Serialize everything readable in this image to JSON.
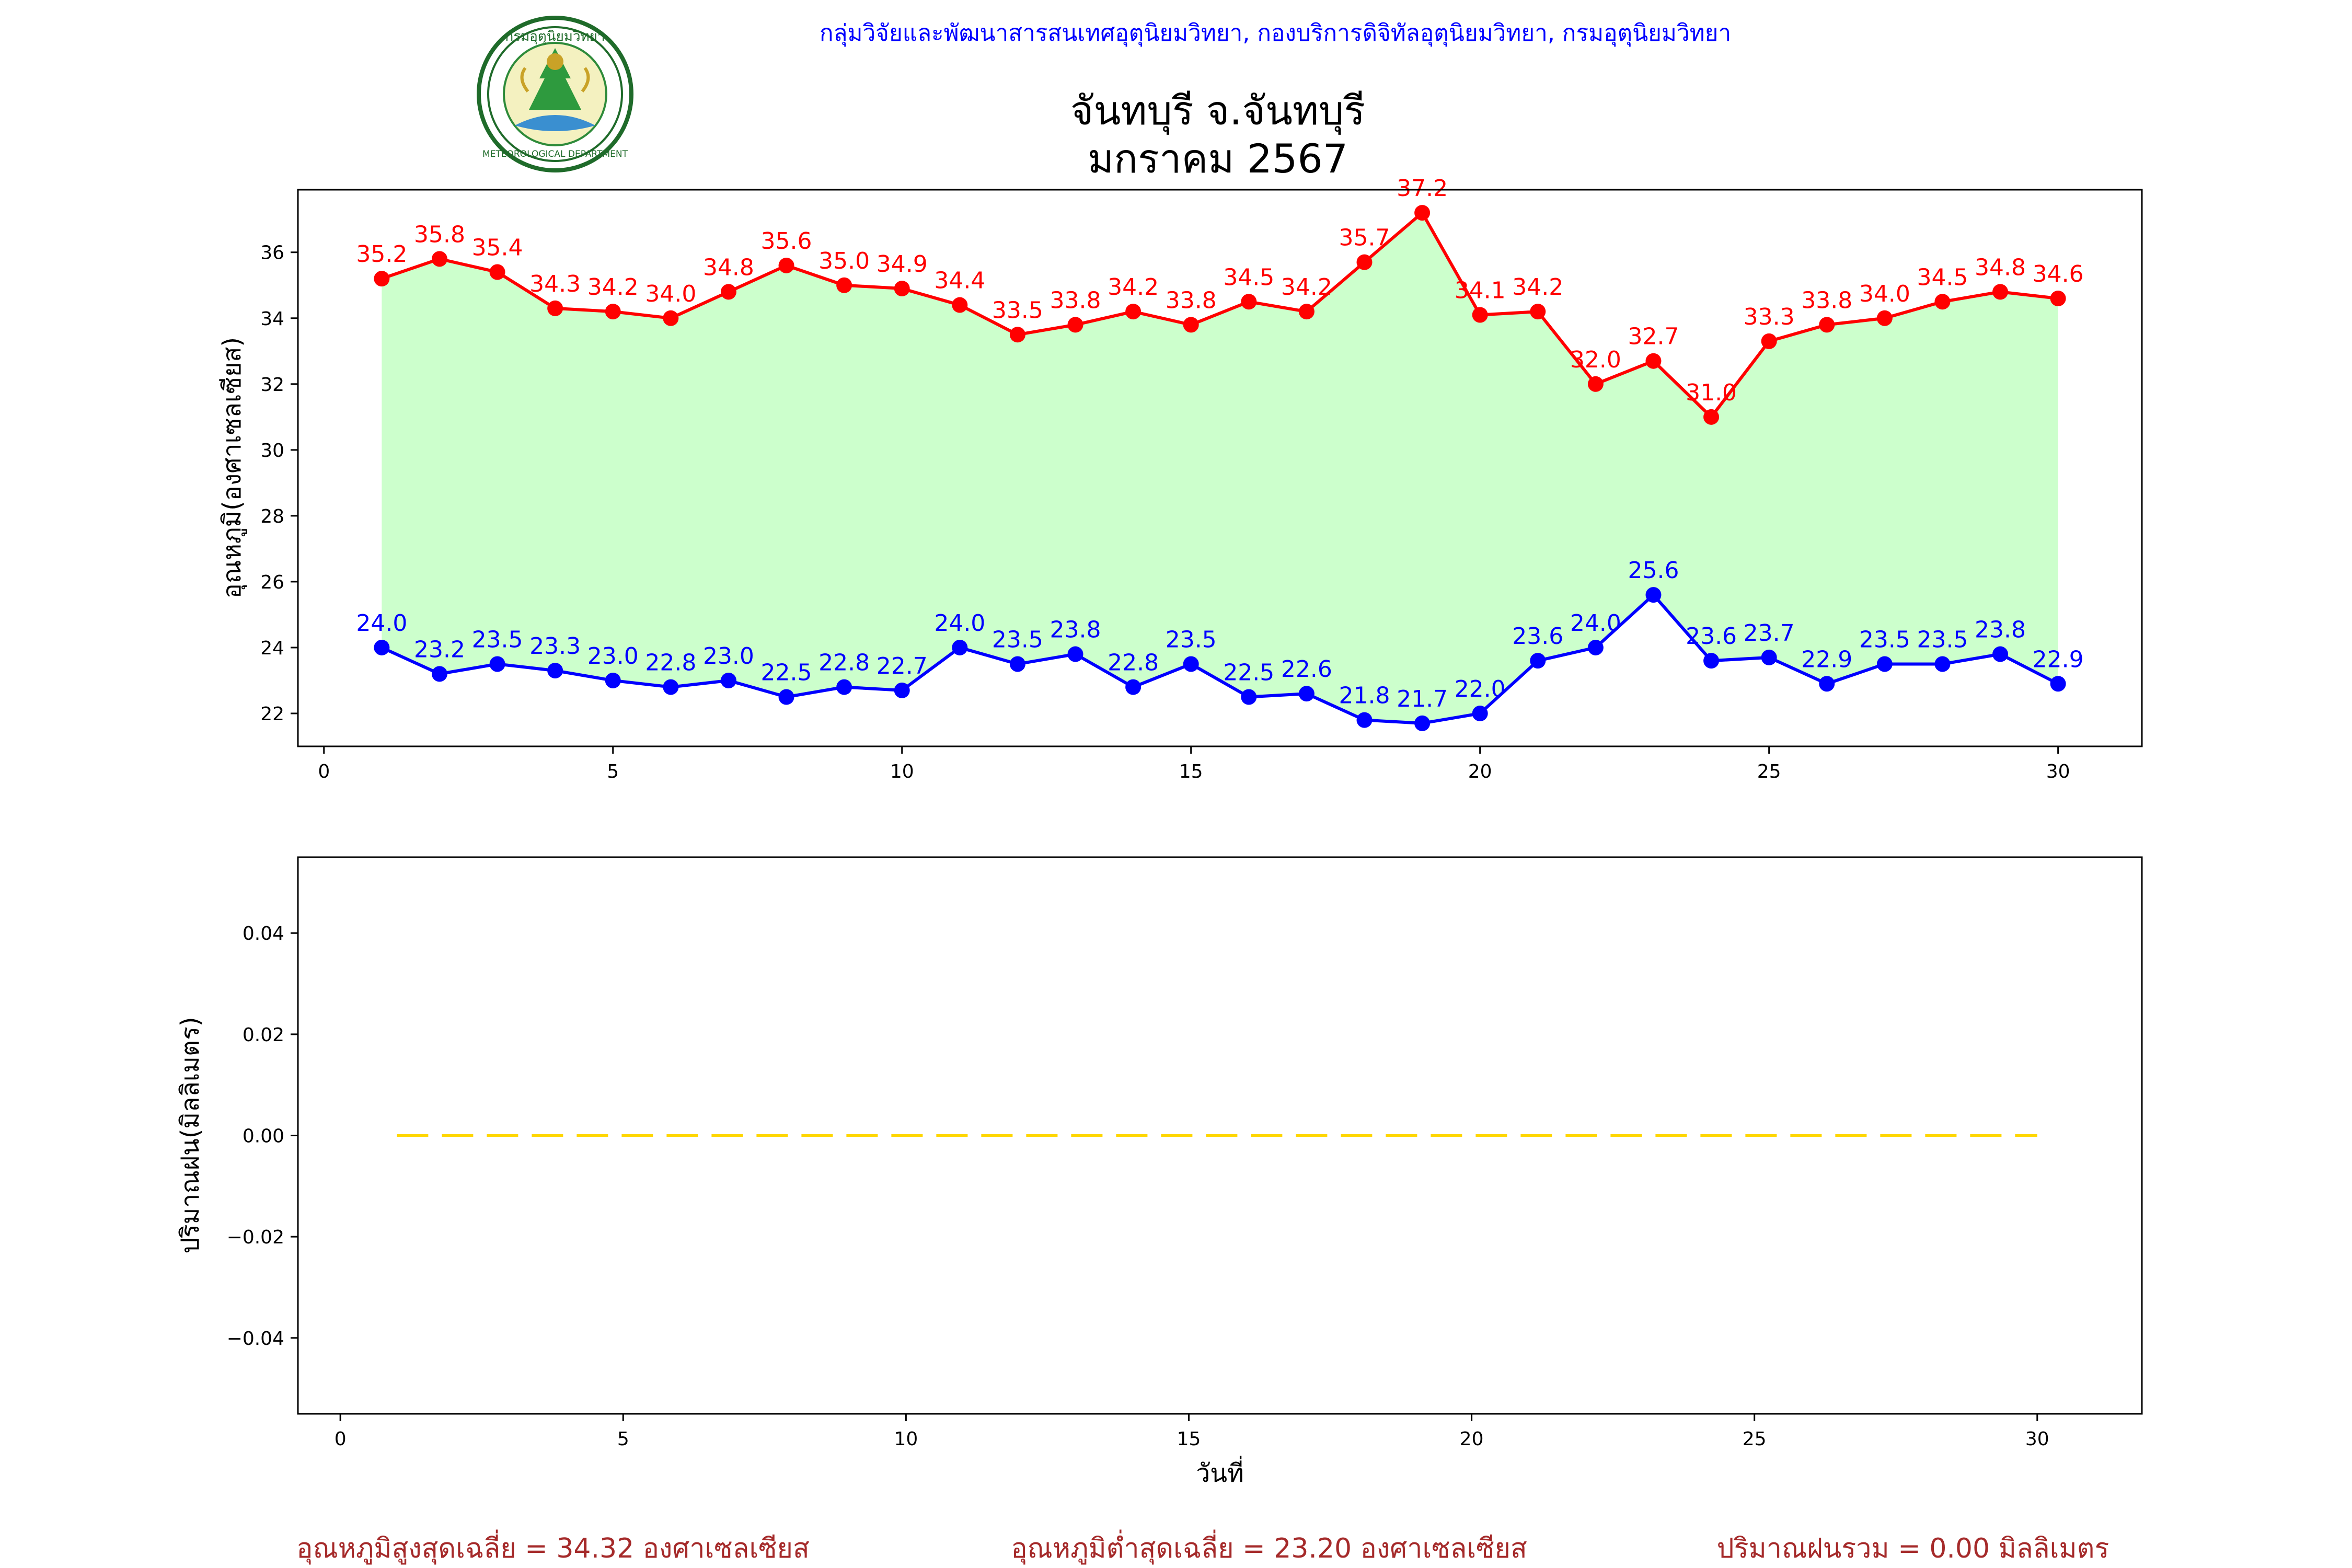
{
  "header": {
    "org_line": "กลุ่มวิจัยและพัฒนาสารสนเทศอุตุนิยมวิทยา, กองบริการดิจิทัลอุตุนิยมวิทยา, กรมอุตุนิยมวิทยา",
    "title_line1": "จันทบุรี จ.จันทบุรี",
    "title_line2": "มกราคม 2567",
    "logo_text_top": "กรมอุตุนิยมวิทยา",
    "logo_text_bottom": "METEOROLOGICAL DEPARTMENT"
  },
  "colors": {
    "max": "#ff0000",
    "min": "#0000ff",
    "fill": "#ccffcc",
    "rain": "#ffd700",
    "org_text": "#0000ff",
    "summary_text": "#a52a2a"
  },
  "chart_data": [
    {
      "type": "line",
      "ylabel": "อุณหภูมิ(องศาเซลเซียส)",
      "xlabel": "",
      "x": [
        1,
        2,
        3,
        4,
        5,
        6,
        7,
        8,
        9,
        10,
        11,
        12,
        13,
        14,
        15,
        16,
        17,
        18,
        19,
        20,
        21,
        22,
        23,
        24,
        25,
        26,
        27,
        28,
        29,
        30
      ],
      "series": [
        {
          "key": "max",
          "values": [
            35.2,
            35.8,
            35.4,
            34.3,
            34.2,
            34.0,
            34.8,
            35.6,
            35.0,
            34.9,
            34.4,
            33.5,
            33.8,
            34.2,
            33.8,
            34.5,
            34.2,
            35.7,
            37.2,
            34.1,
            34.2,
            32.0,
            32.7,
            31.0,
            33.3,
            33.8,
            34.0,
            34.5,
            34.8,
            34.6
          ],
          "labels": [
            "35.2",
            "35.8",
            "35.4",
            "34.3",
            "34.2",
            "34.0",
            "34.8",
            "35.6",
            "35.0",
            "34.9",
            "34.4",
            "33.5",
            "33.8",
            "34.2",
            "33.8",
            "34.5",
            "34.2",
            "35.7",
            "37.2",
            "34.1",
            "34.2",
            "32.0",
            "32.7",
            "31.0",
            "33.3",
            "33.8",
            "34.0",
            "34.5",
            "34.8",
            "34.6"
          ]
        },
        {
          "key": "min",
          "values": [
            24.0,
            23.2,
            23.5,
            23.3,
            23.0,
            22.8,
            23.0,
            22.5,
            22.8,
            22.7,
            24.0,
            23.5,
            23.8,
            22.8,
            23.5,
            22.5,
            22.6,
            21.8,
            21.7,
            22.0,
            23.6,
            24.0,
            25.6,
            23.6,
            23.7,
            22.9,
            23.5,
            23.5,
            23.8,
            22.9
          ],
          "labels": [
            "24.0",
            "23.2",
            "23.5",
            "23.3",
            "23.0",
            "22.8",
            "23.0",
            "22.5",
            "22.8",
            "22.7",
            "24.0",
            "23.5",
            "23.8",
            "22.8",
            "23.5",
            "22.5",
            "22.6",
            "21.8",
            "21.7",
            "22.0",
            "23.6",
            "24.0",
            "25.6",
            "23.6",
            "23.7",
            "22.9",
            "23.5",
            "23.5",
            "23.8",
            "22.9"
          ]
        }
      ],
      "xlim": [
        -0.45,
        31.45
      ],
      "ylim": [
        21.0,
        37.9
      ],
      "xticks": [
        0,
        5,
        10,
        15,
        20,
        25,
        30
      ],
      "xtick_labels": [
        "0",
        "5",
        "10",
        "15",
        "20",
        "25",
        "30"
      ],
      "yticks": [
        22,
        24,
        26,
        28,
        30,
        32,
        34,
        36
      ],
      "ytick_labels": [
        "22",
        "24",
        "26",
        "28",
        "30",
        "32",
        "34",
        "36"
      ],
      "fill_between": true
    },
    {
      "type": "line",
      "ylabel": "ปริมาณฝน(มิลลิเมตร)",
      "xlabel": "วันที่",
      "x": [
        1,
        2,
        3,
        4,
        5,
        6,
        7,
        8,
        9,
        10,
        11,
        12,
        13,
        14,
        15,
        16,
        17,
        18,
        19,
        20,
        21,
        22,
        23,
        24,
        25,
        26,
        27,
        28,
        29,
        30
      ],
      "series": [
        {
          "key": "rain",
          "values": [
            0,
            0,
            0,
            0,
            0,
            0,
            0,
            0,
            0,
            0,
            0,
            0,
            0,
            0,
            0,
            0,
            0,
            0,
            0,
            0,
            0,
            0,
            0,
            0,
            0,
            0,
            0,
            0,
            0,
            0
          ],
          "style": "dashed"
        }
      ],
      "xlim": [
        -0.75,
        31.85
      ],
      "ylim": [
        -0.055,
        0.055
      ],
      "xticks": [
        0,
        5,
        10,
        15,
        20,
        25,
        30
      ],
      "xtick_labels": [
        "0",
        "5",
        "10",
        "15",
        "20",
        "25",
        "30"
      ],
      "yticks": [
        -0.04,
        -0.02,
        0.0,
        0.02,
        0.04
      ],
      "ytick_labels": [
        "−0.04",
        "−0.02",
        "0.00",
        "0.02",
        "0.04"
      ]
    }
  ],
  "summary": {
    "max_avg": "อุณหภูมิสูงสุดเฉลี่ย = 34.32 องศาเซลเซียส",
    "min_avg": "อุณหภูมิต่ำสุดเฉลี่ย = 23.20 องศาเซลเซียส",
    "rain_total": "ปริมาณฝนรวม = 0.00 มิลลิเมตร"
  }
}
